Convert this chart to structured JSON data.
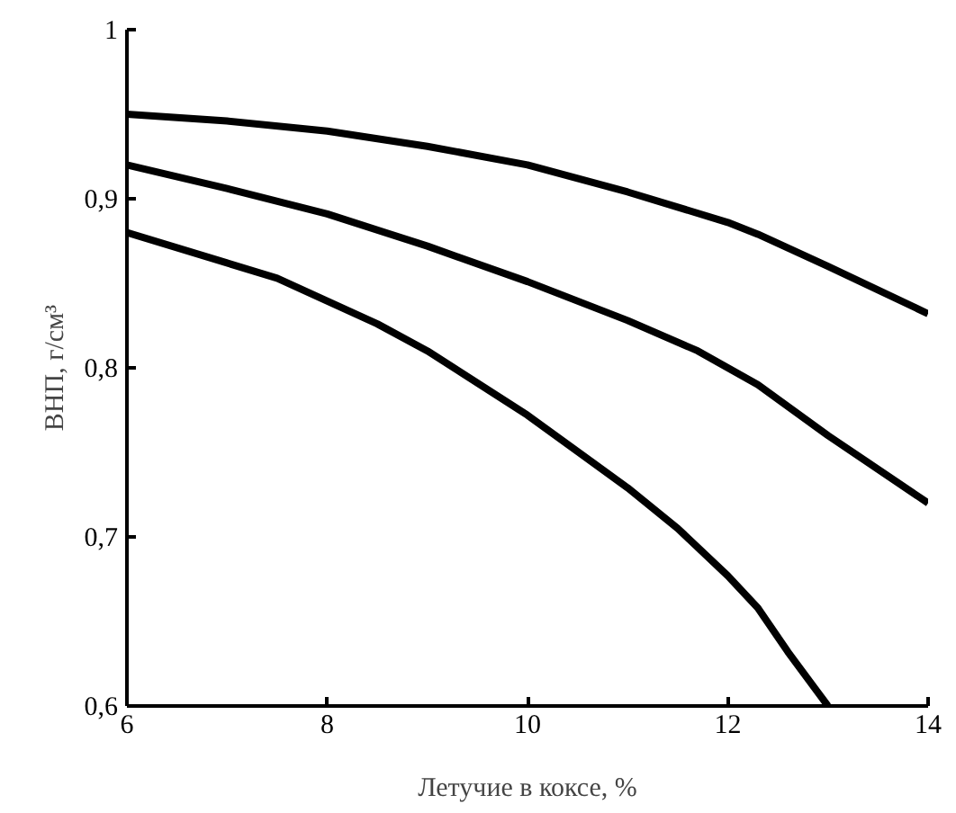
{
  "chart_data": {
    "type": "line",
    "xlabel": "Летучие в коксе, %",
    "ylabel": "ВНП, г/см³",
    "xlim": [
      6,
      14
    ],
    "xticks": [
      6,
      8,
      10,
      12,
      14
    ],
    "ylim": [
      0.6,
      1
    ],
    "yticks": [
      {
        "value": 0.6,
        "label": "0,6"
      },
      {
        "value": 0.7,
        "label": "0,7"
      },
      {
        "value": 0.8,
        "label": "0,8"
      },
      {
        "value": 0.9,
        "label": "0,9"
      },
      {
        "value": 1,
        "label": "1"
      }
    ],
    "grid": false,
    "line_style": "solid",
    "series": [
      {
        "color": "#000000",
        "x": [
          6,
          7,
          8,
          9,
          10,
          11,
          12,
          12.3,
          13,
          14
        ],
        "values": [
          0.95,
          0.946,
          0.94,
          0.931,
          0.92,
          0.904,
          0.886,
          0.879,
          0.86,
          0.832
        ]
      },
      {
        "color": "#000000",
        "x": [
          6,
          7,
          8,
          9,
          10,
          11,
          11.7,
          12.3,
          13,
          14
        ],
        "values": [
          0.92,
          0.906,
          0.891,
          0.872,
          0.851,
          0.828,
          0.81,
          0.79,
          0.76,
          0.72
        ]
      },
      {
        "color": "#000000",
        "x": [
          6,
          7,
          7.5,
          8.5,
          9,
          10,
          11,
          11.5,
          12,
          12.3,
          12.6,
          13
        ],
        "values": [
          0.88,
          0.862,
          0.853,
          0.826,
          0.81,
          0.772,
          0.729,
          0.705,
          0.677,
          0.658,
          0.632,
          0.6
        ]
      }
    ]
  }
}
